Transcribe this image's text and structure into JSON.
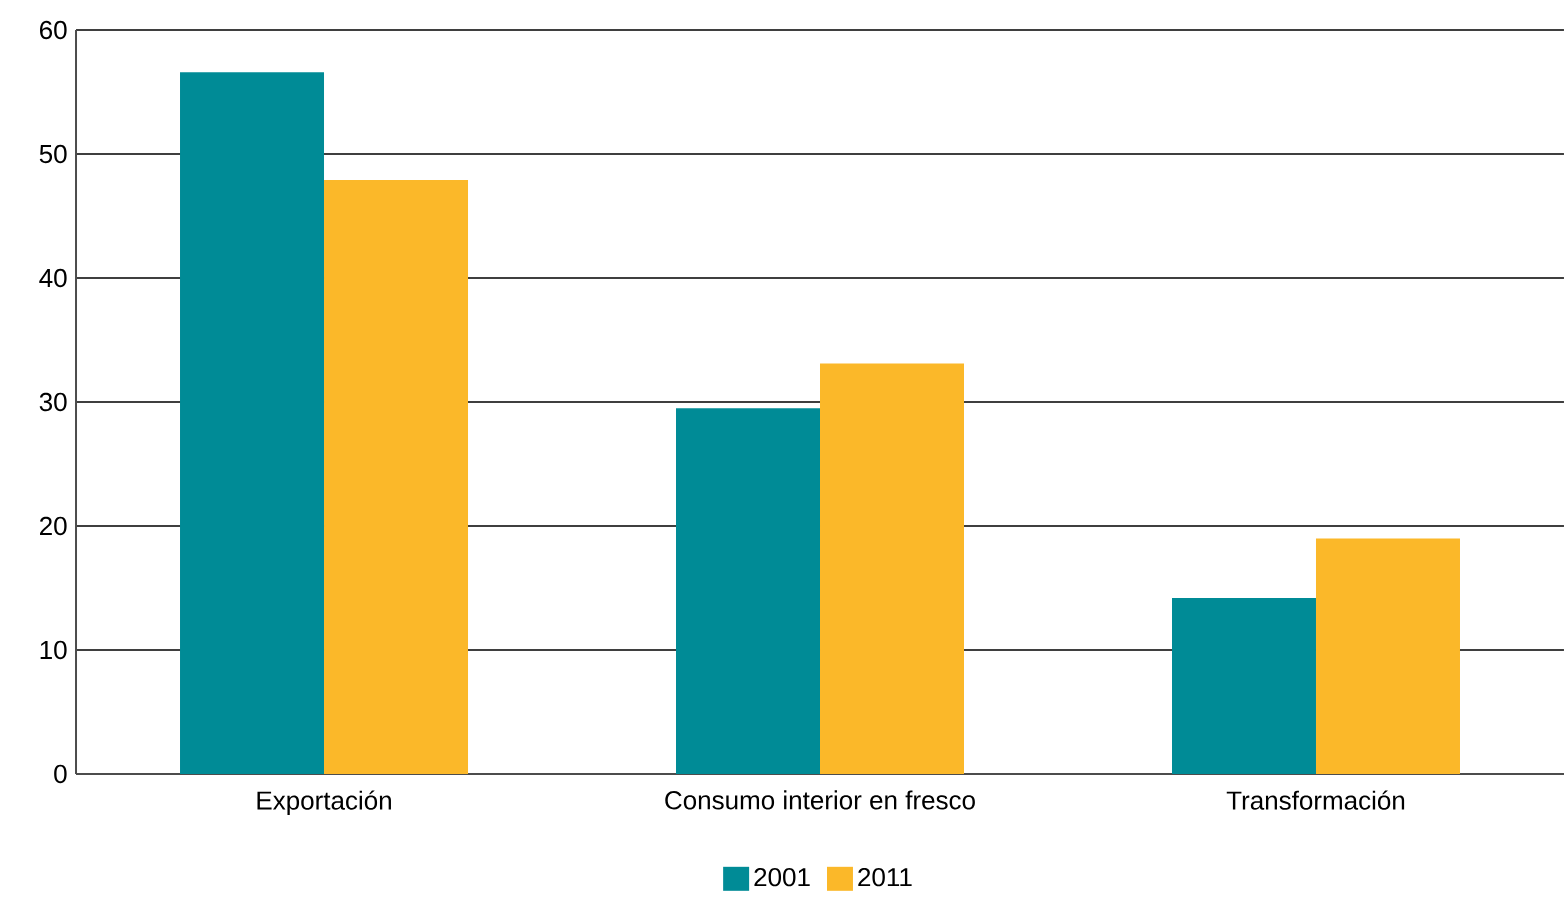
{
  "chart_data": {
    "type": "bar",
    "categories": [
      "Exportación",
      "Consumo interior en fresco",
      "Transformación"
    ],
    "series": [
      {
        "name": "2001",
        "color": "#008b96",
        "values": [
          56.6,
          29.5,
          14.2
        ]
      },
      {
        "name": "2011",
        "color": "#fbb829",
        "values": [
          47.9,
          33.1,
          19.0
        ]
      }
    ],
    "ylim": [
      0,
      60
    ],
    "yticks": [
      0,
      10,
      20,
      30,
      40,
      50,
      60
    ],
    "grid": "y",
    "legend": "bottom"
  }
}
